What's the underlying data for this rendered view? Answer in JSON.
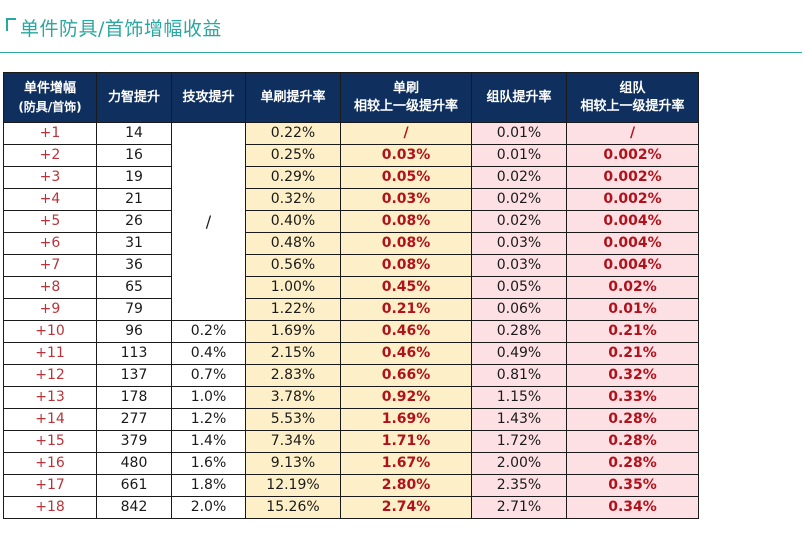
{
  "title": "单件防具/首饰增幅收益",
  "headers": {
    "level": [
      "单件增幅",
      "(防具/首饰)"
    ],
    "strength": "力智提升",
    "skill": "技攻提升",
    "solo": "单刷提升率",
    "solo_delta": [
      "单刷",
      "相较上一级提升率"
    ],
    "team": "组队提升率",
    "team_delta": [
      "组队",
      "相较上一级提升率"
    ]
  },
  "merged_skill_text": "/",
  "rows": [
    {
      "level": "+1",
      "strength": "14",
      "skill": "",
      "solo": "0.22%",
      "solo_delta": "/",
      "team": "0.01%",
      "team_delta": "/"
    },
    {
      "level": "+2",
      "strength": "16",
      "skill": "",
      "solo": "0.25%",
      "solo_delta": "0.03%",
      "team": "0.01%",
      "team_delta": "0.002%"
    },
    {
      "level": "+3",
      "strength": "19",
      "skill": "",
      "solo": "0.29%",
      "solo_delta": "0.05%",
      "team": "0.02%",
      "team_delta": "0.002%"
    },
    {
      "level": "+4",
      "strength": "21",
      "skill": "",
      "solo": "0.32%",
      "solo_delta": "0.03%",
      "team": "0.02%",
      "team_delta": "0.002%"
    },
    {
      "level": "+5",
      "strength": "26",
      "skill": "",
      "solo": "0.40%",
      "solo_delta": "0.08%",
      "team": "0.02%",
      "team_delta": "0.004%"
    },
    {
      "level": "+6",
      "strength": "31",
      "skill": "",
      "solo": "0.48%",
      "solo_delta": "0.08%",
      "team": "0.03%",
      "team_delta": "0.004%"
    },
    {
      "level": "+7",
      "strength": "36",
      "skill": "",
      "solo": "0.56%",
      "solo_delta": "0.08%",
      "team": "0.03%",
      "team_delta": "0.004%"
    },
    {
      "level": "+8",
      "strength": "65",
      "skill": "",
      "solo": "1.00%",
      "solo_delta": "0.45%",
      "team": "0.05%",
      "team_delta": "0.02%"
    },
    {
      "level": "+9",
      "strength": "79",
      "skill": "",
      "solo": "1.22%",
      "solo_delta": "0.21%",
      "team": "0.06%",
      "team_delta": "0.01%"
    },
    {
      "level": "+10",
      "strength": "96",
      "skill": "0.2%",
      "solo": "1.69%",
      "solo_delta": "0.46%",
      "team": "0.28%",
      "team_delta": "0.21%"
    },
    {
      "level": "+11",
      "strength": "113",
      "skill": "0.4%",
      "solo": "2.15%",
      "solo_delta": "0.46%",
      "team": "0.49%",
      "team_delta": "0.21%"
    },
    {
      "level": "+12",
      "strength": "137",
      "skill": "0.7%",
      "solo": "2.83%",
      "solo_delta": "0.66%",
      "team": "0.81%",
      "team_delta": "0.32%"
    },
    {
      "level": "+13",
      "strength": "178",
      "skill": "1.0%",
      "solo": "3.78%",
      "solo_delta": "0.92%",
      "team": "1.15%",
      "team_delta": "0.33%"
    },
    {
      "level": "+14",
      "strength": "277",
      "skill": "1.2%",
      "solo": "5.53%",
      "solo_delta": "1.69%",
      "team": "1.43%",
      "team_delta": "0.28%"
    },
    {
      "level": "+15",
      "strength": "379",
      "skill": "1.4%",
      "solo": "7.34%",
      "solo_delta": "1.71%",
      "team": "1.72%",
      "team_delta": "0.28%"
    },
    {
      "level": "+16",
      "strength": "480",
      "skill": "1.6%",
      "solo": "9.13%",
      "solo_delta": "1.67%",
      "team": "2.00%",
      "team_delta": "0.28%"
    },
    {
      "level": "+17",
      "strength": "661",
      "skill": "1.8%",
      "solo": "12.19%",
      "solo_delta": "2.80%",
      "team": "2.35%",
      "team_delta": "0.35%"
    },
    {
      "level": "+18",
      "strength": "842",
      "skill": "2.0%",
      "solo": "15.26%",
      "solo_delta": "2.74%",
      "team": "2.71%",
      "team_delta": "0.34%"
    }
  ]
}
